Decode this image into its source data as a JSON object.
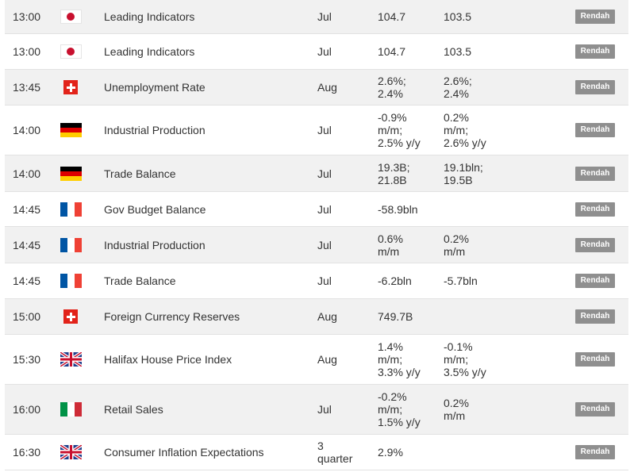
{
  "rows": [
    {
      "time": "13:00",
      "flag": "jp-flag-icon",
      "event": "Leading Indicators",
      "period": "Jul",
      "actual": "104.7",
      "previous": "103.5",
      "impact": "Rendah"
    },
    {
      "time": "13:00",
      "flag": "jp-flag-icon",
      "event": "Leading Indicators",
      "period": "Jul",
      "actual": "104.7",
      "previous": "103.5",
      "impact": "Rendah"
    },
    {
      "time": "13:45",
      "flag": "ch-flag-icon",
      "event": "Unemployment Rate",
      "period": "Aug",
      "actual": "2.6%; 2.4%",
      "previous": "2.6%; 2.4%",
      "impact": "Rendah"
    },
    {
      "time": "14:00",
      "flag": "de-flag-icon",
      "event": "Industrial Production",
      "period": "Jul",
      "actual": "-0.9% m/m; 2.5% y/y",
      "previous": "0.2% m/m; 2.6% y/y",
      "impact": "Rendah"
    },
    {
      "time": "14:00",
      "flag": "de-flag-icon",
      "event": "Trade Balance",
      "period": "Jul",
      "actual": "19.3B; 21.8B",
      "previous": "19.1bln; 19.5B",
      "impact": "Rendah"
    },
    {
      "time": "14:45",
      "flag": "fr-flag-icon",
      "event": "Gov Budget Balance",
      "period": "Jul",
      "actual": "-58.9bln",
      "previous": "",
      "impact": "Rendah"
    },
    {
      "time": "14:45",
      "flag": "fr-flag-icon",
      "event": "Industrial Production",
      "period": "Jul",
      "actual": "0.6% m/m",
      "previous": "0.2% m/m",
      "impact": "Rendah"
    },
    {
      "time": "14:45",
      "flag": "fr-flag-icon",
      "event": "Trade Balance",
      "period": "Jul",
      "actual": "-6.2bln",
      "previous": "-5.7bln",
      "impact": "Rendah"
    },
    {
      "time": "15:00",
      "flag": "ch-flag-icon",
      "event": "Foreign Currency Reserves",
      "period": "Aug",
      "actual": "749.7B",
      "previous": "",
      "impact": "Rendah"
    },
    {
      "time": "15:30",
      "flag": "gb-flag-icon",
      "event": "Halifax House Price Index",
      "period": "Aug",
      "actual": "1.4% m/m; 3.3% y/y",
      "previous": "-0.1% m/m; 3.5% y/y",
      "impact": "Rendah"
    },
    {
      "time": "16:00",
      "flag": "it-flag-icon",
      "event": "Retail Sales",
      "period": "Jul",
      "actual": "-0.2% m/m; 1.5% y/y",
      "previous": "0.2% m/m",
      "impact": "Rendah"
    },
    {
      "time": "16:30",
      "flag": "gb-flag-icon",
      "event": "Consumer Inflation Expectations",
      "period": "3 quarter",
      "actual": "2.9%",
      "previous": "",
      "impact": "Rendah"
    }
  ]
}
